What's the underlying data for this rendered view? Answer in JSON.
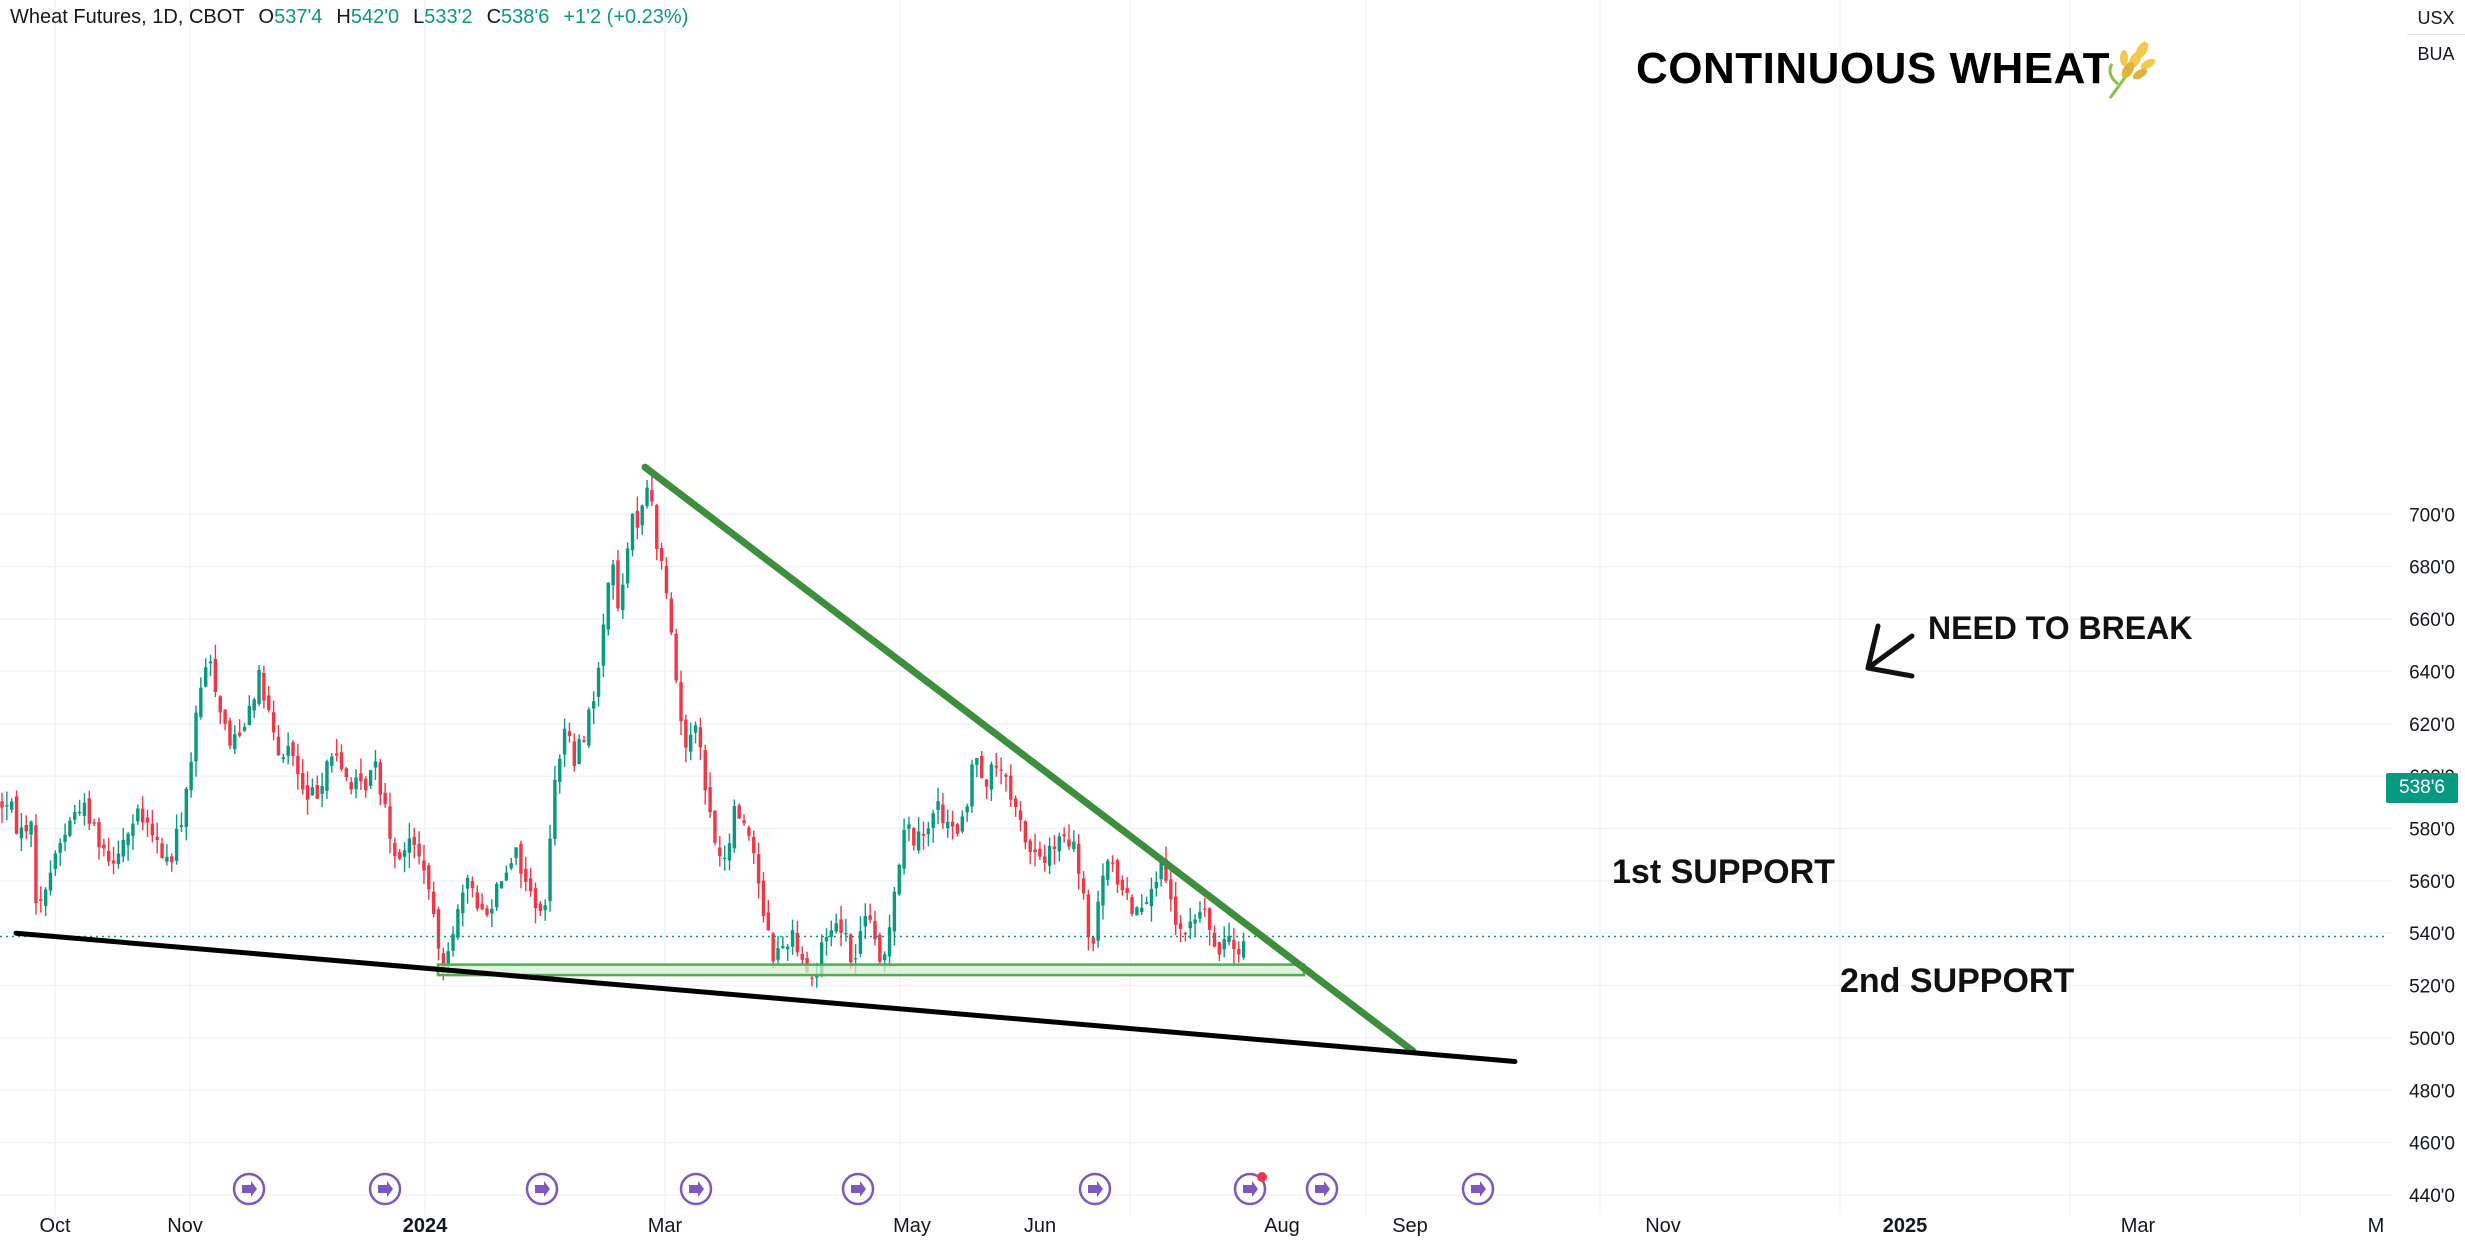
{
  "header": {
    "symbol": "Wheat Futures, 1D, CBOT",
    "open_label": "O",
    "open": "537'4",
    "high_label": "H",
    "high": "542'0",
    "low_label": "L",
    "low": "533'2",
    "close_label": "C",
    "close": "538'6",
    "change": "+1'2 (+0.23%)"
  },
  "units": {
    "currency": "USX",
    "unit": "BUA"
  },
  "annotations": {
    "title": "CONTINUOUS WHEAT",
    "title_icon": "wheat-icon",
    "need_to_break": "NEED TO BREAK",
    "first_support": "1st SUPPORT",
    "second_support": "2nd SUPPORT"
  },
  "last_price_label": "538'6",
  "colors": {
    "up": "#089981",
    "down": "#f23645",
    "trendline_green": "#3d8f3d",
    "support_zone_fill": "#d6efd2",
    "support_zone_stroke": "#4caf50",
    "trendline_black": "#000000",
    "event_marker": "#7e57c2",
    "grid": "#f0f3fa",
    "axis_text": "#131722"
  },
  "chart_data": {
    "type": "candlestick",
    "y_axis": {
      "ticks": [
        440,
        460,
        480,
        500,
        520,
        540,
        560,
        580,
        600,
        620,
        640,
        660,
        680,
        700
      ],
      "tick_labels": [
        "440'0",
        "460'0",
        "480'0",
        "500'0",
        "520'0",
        "540'0",
        "560'0",
        "580'0",
        "600'0",
        "620'0",
        "640'0",
        "660'0",
        "680'0",
        "700'0"
      ],
      "range": [
        437,
        727
      ]
    },
    "x_axis": {
      "tick_labels": [
        "Oct",
        "Nov",
        "2024",
        "Mar",
        "May",
        "Jun",
        "Aug",
        "Sep",
        "Nov",
        "2025",
        "Mar",
        "M"
      ],
      "bold_labels": [
        "2024",
        "2025"
      ]
    },
    "last_price": 538.75,
    "price_path": [
      [
        0,
        590
      ],
      [
        10,
        588
      ],
      [
        20,
        578
      ],
      [
        30,
        585
      ],
      [
        38,
        545
      ],
      [
        48,
        562
      ],
      [
        60,
        575
      ],
      [
        80,
        590
      ],
      [
        95,
        580
      ],
      [
        110,
        568
      ],
      [
        125,
        577
      ],
      [
        140,
        585
      ],
      [
        155,
        575
      ],
      [
        170,
        566
      ],
      [
        185,
        590
      ],
      [
        200,
        632
      ],
      [
        210,
        645
      ],
      [
        218,
        630
      ],
      [
        230,
        612
      ],
      [
        245,
        622
      ],
      [
        258,
        638
      ],
      [
        268,
        625
      ],
      [
        278,
        606
      ],
      [
        290,
        612
      ],
      [
        305,
        590
      ],
      [
        318,
        595
      ],
      [
        330,
        610
      ],
      [
        345,
        600
      ],
      [
        360,
        594
      ],
      [
        375,
        604
      ],
      [
        385,
        590
      ],
      [
        395,
        570
      ],
      [
        410,
        575
      ],
      [
        425,
        565
      ],
      [
        435,
        540
      ],
      [
        442,
        528
      ],
      [
        455,
        545
      ],
      [
        470,
        560
      ],
      [
        485,
        545
      ],
      [
        500,
        562
      ],
      [
        515,
        572
      ],
      [
        530,
        555
      ],
      [
        545,
        548
      ],
      [
        555,
        602
      ],
      [
        565,
        618
      ],
      [
        575,
        605
      ],
      [
        590,
        625
      ],
      [
        600,
        642
      ],
      [
        610,
        685
      ],
      [
        620,
        660
      ],
      [
        630,
        695
      ],
      [
        640,
        700
      ],
      [
        648,
        715
      ],
      [
        655,
        692
      ],
      [
        665,
        675
      ],
      [
        675,
        640
      ],
      [
        685,
        610
      ],
      [
        695,
        625
      ],
      [
        705,
        595
      ],
      [
        715,
        575
      ],
      [
        725,
        565
      ],
      [
        735,
        588
      ],
      [
        745,
        582
      ],
      [
        755,
        570
      ],
      [
        765,
        545
      ],
      [
        775,
        530
      ],
      [
        790,
        540
      ],
      [
        800,
        535
      ],
      [
        808,
        525
      ],
      [
        815,
        522
      ],
      [
        825,
        540
      ],
      [
        840,
        545
      ],
      [
        855,
        528
      ],
      [
        865,
        550
      ],
      [
        875,
        535
      ],
      [
        882,
        525
      ],
      [
        892,
        552
      ],
      [
        905,
        580
      ],
      [
        920,
        575
      ],
      [
        935,
        590
      ],
      [
        950,
        578
      ],
      [
        965,
        582
      ],
      [
        975,
        612
      ],
      [
        985,
        598
      ],
      [
        1000,
        605
      ],
      [
        1010,
        590
      ],
      [
        1020,
        582
      ],
      [
        1030,
        572
      ],
      [
        1045,
        568
      ],
      [
        1060,
        575
      ],
      [
        1075,
        572
      ],
      [
        1085,
        548
      ],
      [
        1092,
        532
      ],
      [
        1105,
        568
      ],
      [
        1120,
        560
      ],
      [
        1135,
        548
      ],
      [
        1150,
        558
      ],
      [
        1160,
        565
      ],
      [
        1170,
        552
      ],
      [
        1180,
        538
      ],
      [
        1195,
        545
      ],
      [
        1205,
        550
      ],
      [
        1215,
        530
      ],
      [
        1228,
        542
      ],
      [
        1238,
        535
      ],
      [
        1248,
        538.75
      ]
    ],
    "trendlines": [
      {
        "name": "resistance",
        "color": "green",
        "from": {
          "x": 645,
          "y": 718
        },
        "to": {
          "x": 1413,
          "y": 495
        }
      },
      {
        "name": "support-diagonal",
        "color": "black",
        "from": {
          "x": 16,
          "y": 540
        },
        "to": {
          "x": 1515,
          "y": 491
        }
      }
    ],
    "zones": [
      {
        "name": "first-support-zone",
        "x_from": 438,
        "x_to": 1304,
        "y_from": 524,
        "y_to": 528
      }
    ],
    "event_markers": [
      155,
      385,
      542,
      696,
      858,
      1095,
      1250,
      1322,
      1478
    ]
  }
}
